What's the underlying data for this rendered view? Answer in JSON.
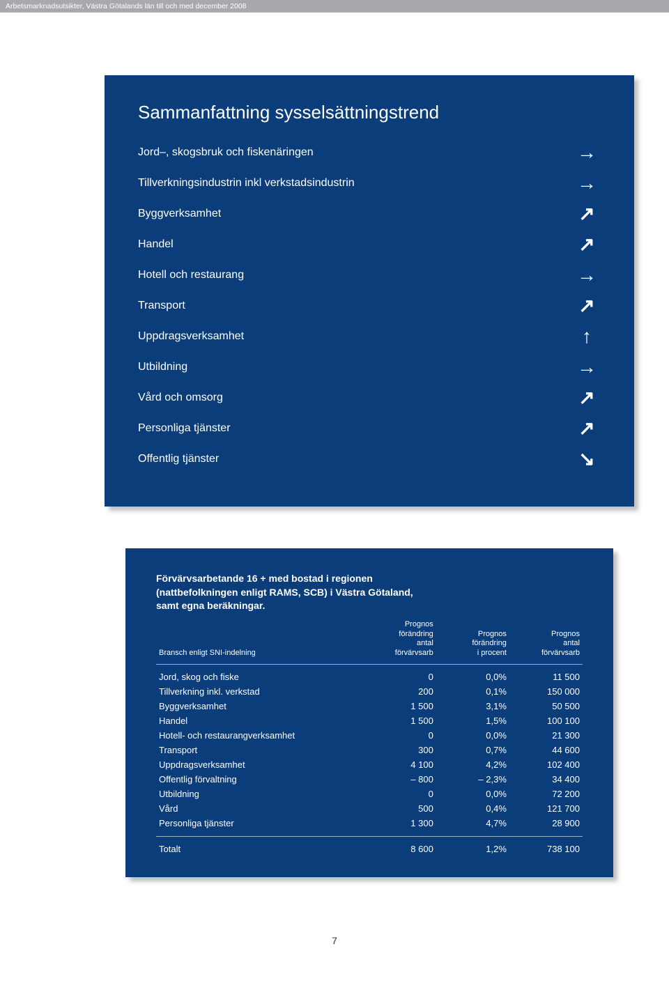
{
  "header_text": "Arbetsmarknadsutsikter, Västra Götalands län till och med december 2008",
  "panel1": {
    "title": "Sammanfattning sysselsättningstrend",
    "rows": [
      {
        "label": "Jord–, skogsbruk och fiskenäringen",
        "arrow": "right"
      },
      {
        "label": "Tillverkningsindustrin inkl verkstadsindustrin",
        "arrow": "right"
      },
      {
        "label": "Byggverksamhet",
        "arrow": "upright"
      },
      {
        "label": "Handel",
        "arrow": "upright"
      },
      {
        "label": "Hotell och restaurang",
        "arrow": "right"
      },
      {
        "label": "Transport",
        "arrow": "upright"
      },
      {
        "label": "Uppdragsverksamhet",
        "arrow": "up"
      },
      {
        "label": "Utbildning",
        "arrow": "right"
      },
      {
        "label": "Vård och omsorg",
        "arrow": "upright"
      },
      {
        "label": "Personliga tjänster",
        "arrow": "upright"
      },
      {
        "label": "Offentlig tjänster",
        "arrow": "downright"
      }
    ]
  },
  "panel2": {
    "title_l1": "Förvärvsarbetande 16 + med bostad i regionen",
    "title_l2": "(nattbefolkningen enligt RAMS, SCB) i Västra Götaland,",
    "title_l3": "samt egna beräkningar.",
    "head_col1": "Bransch enligt SNI-indelning",
    "head_col2_l1": "Prognos",
    "head_col2_l2": "förändring",
    "head_col2_l3": "antal",
    "head_col2_l4": "förvärvsarb",
    "head_col3_l1": "Prognos",
    "head_col3_l2": "förändring",
    "head_col3_l3": "i procent",
    "head_col4_l1": "Prognos",
    "head_col4_l2": "antal",
    "head_col4_l3": "förvärvsarb",
    "rows": [
      {
        "b": "Jord, skog och fiske",
        "c1": "0",
        "c2": "0,0%",
        "c3": "11 500"
      },
      {
        "b": "Tillverkning inkl. verkstad",
        "c1": "200",
        "c2": "0,1%",
        "c3": "150 000"
      },
      {
        "b": "Byggverksamhet",
        "c1": "1 500",
        "c2": "3,1%",
        "c3": "50 500"
      },
      {
        "b": "Handel",
        "c1": "1 500",
        "c2": "1,5%",
        "c3": "100 100"
      },
      {
        "b": "Hotell- och restaurangverksamhet",
        "c1": "0",
        "c2": "0,0%",
        "c3": "21 300"
      },
      {
        "b": "Transport",
        "c1": "300",
        "c2": "0,7%",
        "c3": "44 600"
      },
      {
        "b": "Uppdragsverksamhet",
        "c1": "4 100",
        "c2": "4,2%",
        "c3": "102 400"
      },
      {
        "b": "Offentlig förvaltning",
        "c1": "– 800",
        "c2": "– 2,3%",
        "c3": "34 400"
      },
      {
        "b": "Utbildning",
        "c1": "0",
        "c2": "0,0%",
        "c3": "72 200"
      },
      {
        "b": "Vård",
        "c1": "500",
        "c2": "0,4%",
        "c3": "121 700"
      },
      {
        "b": "Personliga tjänster",
        "c1": "1 300",
        "c2": "4,7%",
        "c3": "28 900"
      }
    ],
    "total": {
      "b": "Totalt",
      "c1": "8 600",
      "c2": "1,2%",
      "c3": "738 100"
    }
  },
  "page_number": "7",
  "colors": {
    "panel_bg": "#0a3d7a",
    "header_bg": "#a7a9ac"
  }
}
